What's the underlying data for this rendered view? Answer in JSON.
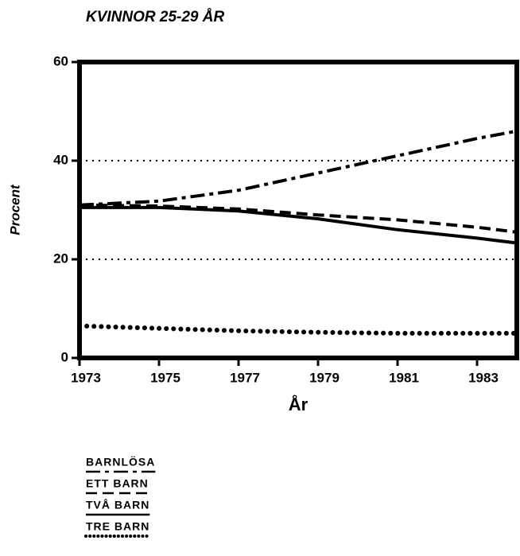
{
  "chart_data": {
    "type": "line",
    "title": "KVINNOR 25-29 ÅR",
    "xlabel": "År",
    "ylabel": "Procent",
    "x": [
      1973,
      1975,
      1977,
      1979,
      1981,
      1983,
      1984
    ],
    "xlim": [
      1973,
      1984
    ],
    "xticks": [
      1973,
      1975,
      1977,
      1979,
      1981,
      1983
    ],
    "ylim": [
      0,
      60
    ],
    "yticks": [
      0,
      20,
      40,
      60
    ],
    "grid": true,
    "series": [
      {
        "name": "BARNLÖSA",
        "color": "#000000",
        "style": "dashdot",
        "values": [
          31,
          31.8,
          34,
          37.5,
          41,
          44.5,
          46
        ]
      },
      {
        "name": "ETT BARN",
        "color": "#000000",
        "style": "dashed",
        "values": [
          31,
          30.8,
          30.2,
          29,
          28,
          26.5,
          25.5
        ]
      },
      {
        "name": "TVÅ BARN",
        "color": "#000000",
        "style": "solid",
        "values": [
          30.5,
          30.5,
          29.8,
          28.2,
          26,
          24.3,
          23.3
        ]
      },
      {
        "name": "TRE BARN",
        "color": "#000000",
        "style": "dotted",
        "values": [
          6.5,
          6,
          5.5,
          5.2,
          5,
          5,
          5
        ]
      }
    ]
  }
}
